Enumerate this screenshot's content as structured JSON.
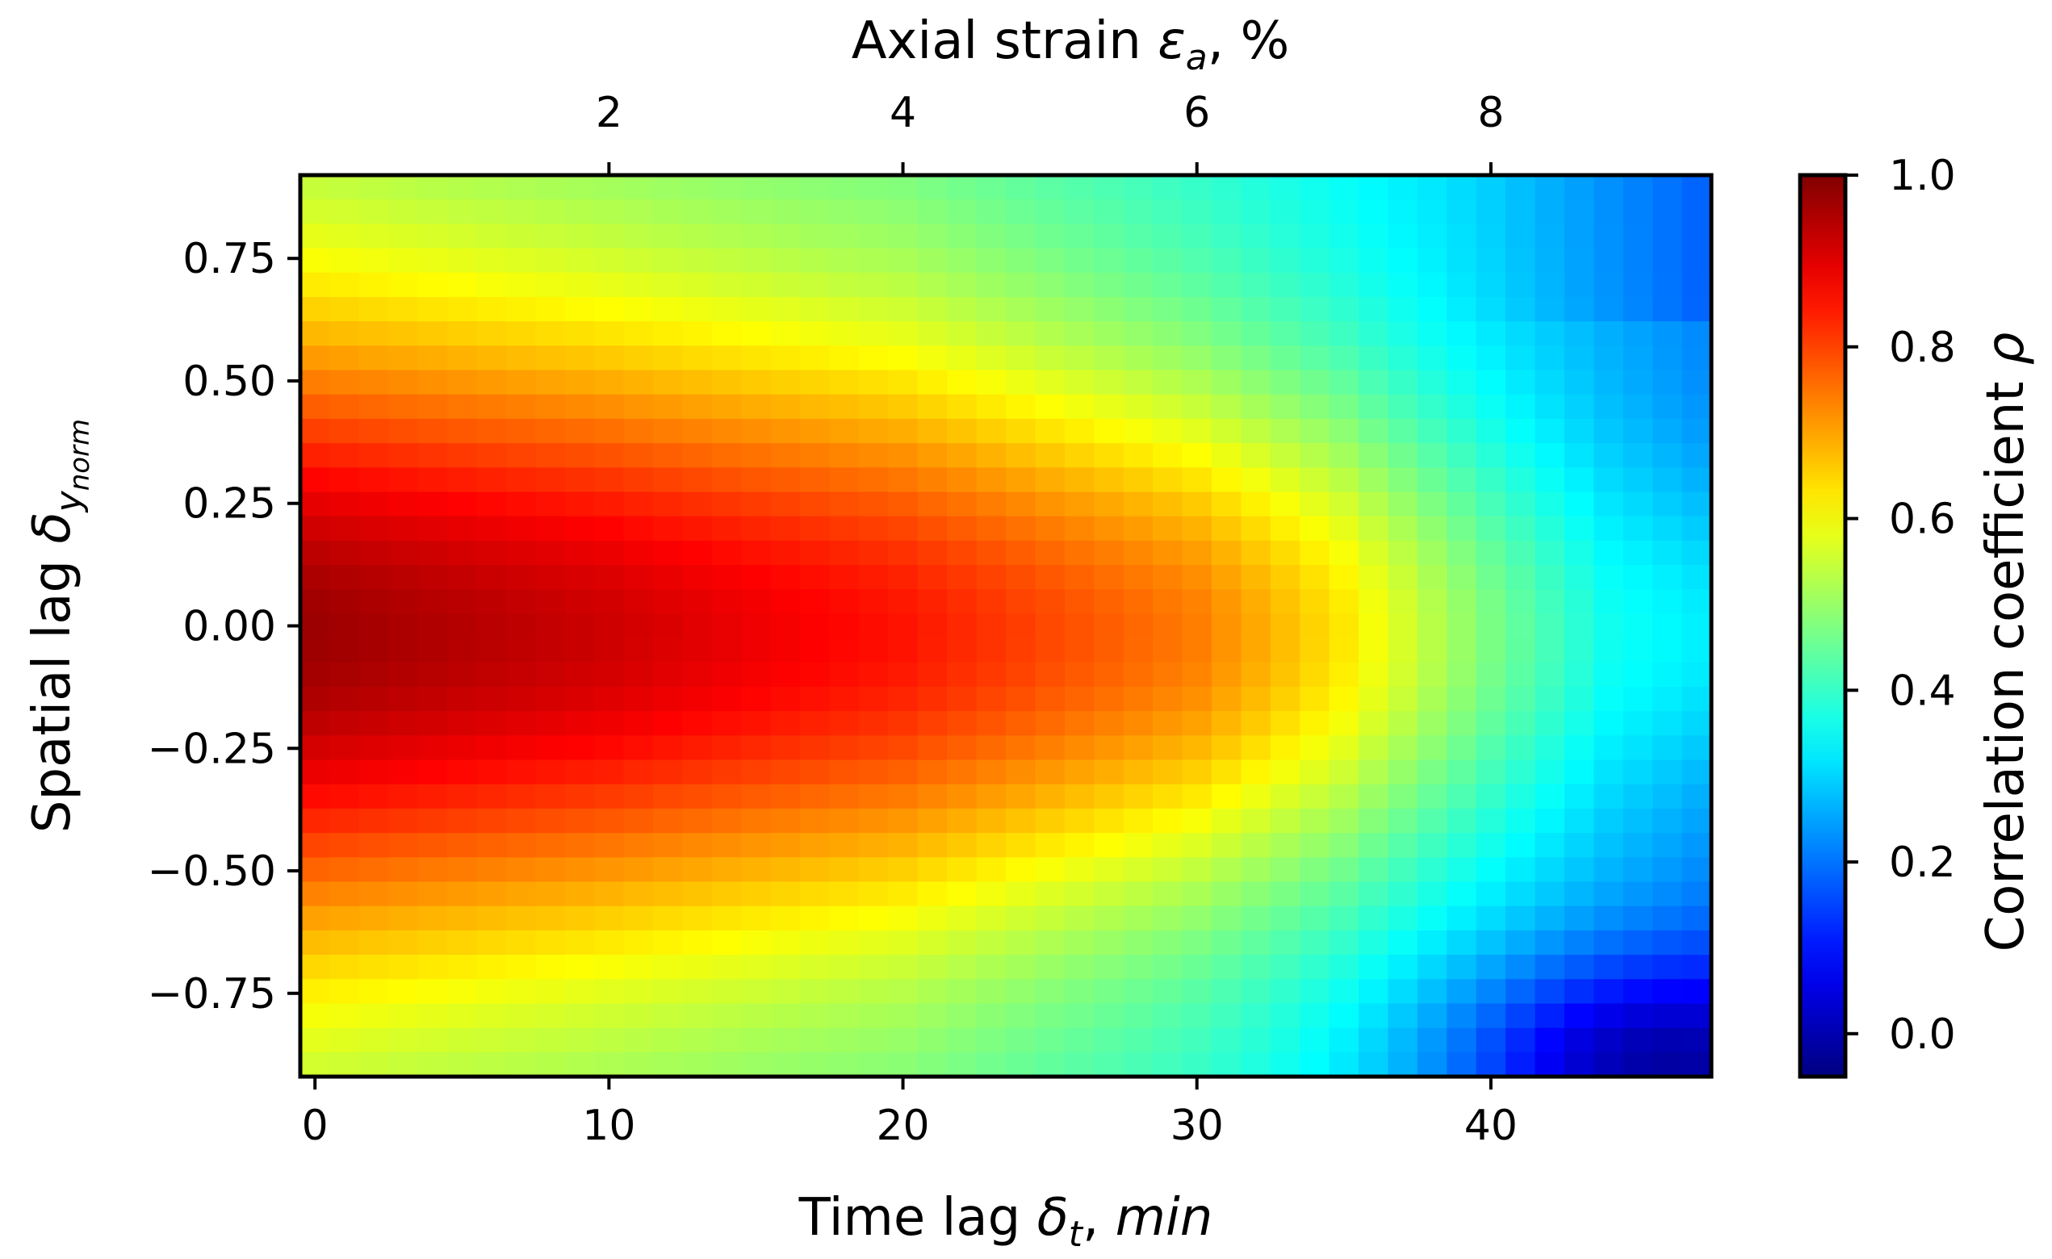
{
  "chart_data": {
    "type": "heatmap",
    "x": {
      "label_main": "Time lag ",
      "label_symbol": "δ",
      "label_sub": "t",
      "label_sep": ", ",
      "label_unit": "min",
      "ticks": [
        0,
        10,
        20,
        30,
        40
      ],
      "tick_labels": [
        "0",
        "10",
        "20",
        "30",
        "40"
      ],
      "range": [
        -0.5,
        47.5
      ],
      "n_cells": 48
    },
    "x_top": {
      "label_main": "Axial strain ",
      "label_symbol": "ε",
      "label_sub": "a",
      "label_unit": ", %",
      "ticks": [
        2,
        4,
        6,
        8
      ],
      "tick_labels": [
        "2",
        "4",
        "6",
        "8"
      ],
      "strain_per_minute": 0.2
    },
    "y": {
      "label_main": "Spatial lag ",
      "label_symbol": "δ",
      "label_sub": "y",
      "label_subsub": "norm",
      "ticks": [
        0.75,
        0.5,
        0.25,
        0.0,
        -0.25,
        -0.5,
        -0.75
      ],
      "tick_labels": [
        "0.75",
        "0.50",
        "0.25",
        "0.00",
        "−0.25",
        "−0.50",
        "−0.75"
      ],
      "range": [
        -0.92,
        0.92
      ],
      "n_cells": 37
    },
    "colorbar": {
      "label": "Correlation coefficient ",
      "label_symbol": "ρ",
      "range": [
        -0.05,
        1.0
      ],
      "colormap": "jet",
      "ticks": [
        0.0,
        0.2,
        0.4,
        0.6,
        0.8,
        1.0
      ],
      "tick_labels": [
        "0.0",
        "0.2",
        "0.4",
        "0.6",
        "0.8",
        "1.0"
      ]
    },
    "field": {
      "description_of_values": "correlation coefficient estimated per cell from image",
      "peak_value": 0.97,
      "peak_at": {
        "time_lag": 0,
        "spatial_lag": -0.02
      },
      "center_value_by_time": [
        [
          0,
          0.97
        ],
        [
          10,
          0.92
        ],
        [
          20,
          0.85
        ],
        [
          30,
          0.74
        ],
        [
          35,
          0.63
        ],
        [
          40,
          0.47
        ],
        [
          44,
          0.36
        ],
        [
          47,
          0.33
        ]
      ],
      "width_by_time": [
        [
          0,
          0.46
        ],
        [
          20,
          0.42
        ],
        [
          35,
          0.36
        ],
        [
          47,
          0.24
        ]
      ],
      "floor_by_time": [
        [
          0,
          0.48
        ],
        [
          20,
          0.44
        ],
        [
          30,
          0.38
        ],
        [
          40,
          0.3
        ],
        [
          47,
          0.22
        ]
      ],
      "lower_dip": {
        "time_lag": 45,
        "spatial_lag": -0.9,
        "min_value": 0.0
      }
    }
  }
}
